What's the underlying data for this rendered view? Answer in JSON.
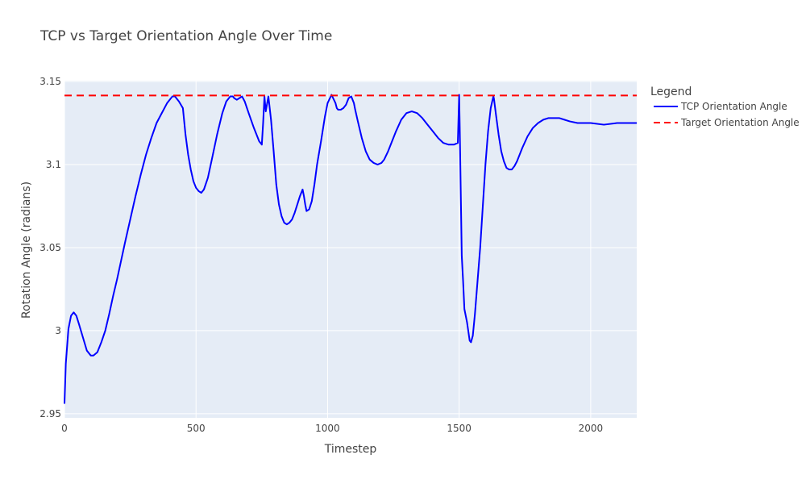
{
  "chart_data": {
    "type": "line",
    "title": "TCP vs Target Orientation Angle Over Time",
    "xlabel": "Timestep",
    "ylabel": "Rotation Angle (radians)",
    "xlim": [
      0,
      2175
    ],
    "ylim": [
      2.9475,
      3.1505
    ],
    "x_ticks": [
      0,
      500,
      1000,
      1500,
      2000
    ],
    "x_tick_labels": [
      "0",
      "500",
      "1000",
      "1500",
      "2000"
    ],
    "y_ticks": [
      2.95,
      3.0,
      3.05,
      3.1,
      3.15
    ],
    "y_tick_labels": [
      "2.95",
      "3",
      "3.05",
      "3.1",
      "3.15"
    ],
    "grid": true,
    "legend": {
      "title": "Legend",
      "placement": "right"
    },
    "series": [
      {
        "name": "TCP Orientation Angle",
        "color": "#0000ff",
        "dash": "solid",
        "x": [
          0,
          5,
          15,
          25,
          35,
          45,
          55,
          70,
          85,
          100,
          110,
          125,
          140,
          155,
          170,
          185,
          200,
          215,
          230,
          250,
          270,
          290,
          310,
          330,
          350,
          370,
          390,
          410,
          420,
          435,
          450,
          460,
          470,
          480,
          490,
          500,
          510,
          520,
          530,
          545,
          560,
          580,
          600,
          615,
          630,
          640,
          645,
          655,
          665,
          675,
          685,
          700,
          720,
          740,
          750,
          755,
          760,
          765,
          775,
          785,
          795,
          805,
          815,
          825,
          835,
          845,
          855,
          865,
          875,
          885,
          895,
          905,
          910,
          915,
          920,
          930,
          940,
          950,
          960,
          975,
          990,
          1000,
          1015,
          1030,
          1035,
          1040,
          1050,
          1060,
          1070,
          1080,
          1090,
          1100,
          1105,
          1115,
          1130,
          1145,
          1160,
          1175,
          1190,
          1205,
          1215,
          1230,
          1245,
          1260,
          1280,
          1300,
          1320,
          1340,
          1360,
          1380,
          1400,
          1420,
          1440,
          1460,
          1480,
          1495,
          1500,
          1502,
          1506,
          1510,
          1515,
          1520,
          1530,
          1540,
          1545,
          1552,
          1560,
          1570,
          1580,
          1590,
          1600,
          1610,
          1620,
          1630,
          1632,
          1640,
          1650,
          1660,
          1670,
          1680,
          1690,
          1700,
          1710,
          1720,
          1740,
          1760,
          1780,
          1800,
          1820,
          1840,
          1860,
          1880,
          1900,
          1920,
          1950,
          2000,
          2050,
          2100,
          2150,
          2175
        ],
        "y": [
          2.956,
          2.98,
          3.001,
          3.009,
          3.011,
          3.009,
          3.004,
          2.996,
          2.988,
          2.985,
          2.985,
          2.987,
          2.993,
          3.0,
          3.01,
          3.021,
          3.031,
          3.042,
          3.053,
          3.067,
          3.081,
          3.094,
          3.106,
          3.116,
          3.125,
          3.131,
          3.137,
          3.141,
          3.141,
          3.138,
          3.134,
          3.118,
          3.106,
          3.097,
          3.09,
          3.086,
          3.084,
          3.083,
          3.085,
          3.092,
          3.103,
          3.118,
          3.131,
          3.138,
          3.141,
          3.141,
          3.14,
          3.139,
          3.14,
          3.141,
          3.138,
          3.131,
          3.122,
          3.114,
          3.112,
          3.125,
          3.141,
          3.132,
          3.141,
          3.127,
          3.108,
          3.088,
          3.076,
          3.069,
          3.065,
          3.064,
          3.065,
          3.067,
          3.071,
          3.076,
          3.081,
          3.085,
          3.081,
          3.076,
          3.072,
          3.073,
          3.078,
          3.088,
          3.1,
          3.114,
          3.129,
          3.137,
          3.142,
          3.137,
          3.134,
          3.133,
          3.133,
          3.134,
          3.136,
          3.14,
          3.141,
          3.137,
          3.133,
          3.126,
          3.116,
          3.108,
          3.103,
          3.101,
          3.1,
          3.101,
          3.103,
          3.108,
          3.114,
          3.12,
          3.127,
          3.131,
          3.132,
          3.131,
          3.128,
          3.124,
          3.12,
          3.116,
          3.113,
          3.112,
          3.112,
          3.113,
          3.142,
          3.125,
          3.085,
          3.045,
          3.03,
          3.013,
          3.005,
          2.994,
          2.993,
          2.997,
          3.01,
          3.03,
          3.05,
          3.075,
          3.1,
          3.12,
          3.134,
          3.141,
          3.14,
          3.13,
          3.118,
          3.108,
          3.102,
          3.098,
          3.097,
          3.097,
          3.099,
          3.102,
          3.11,
          3.117,
          3.122,
          3.125,
          3.127,
          3.128,
          3.128,
          3.128,
          3.127,
          3.126,
          3.125,
          3.125,
          3.124,
          3.125,
          3.125,
          3.125
        ]
      },
      {
        "name": "Target Orientation Angle",
        "color": "#ff0000",
        "dash": "dashed",
        "x": [
          0,
          2175
        ],
        "y": [
          3.1416,
          3.1416
        ]
      }
    ]
  }
}
